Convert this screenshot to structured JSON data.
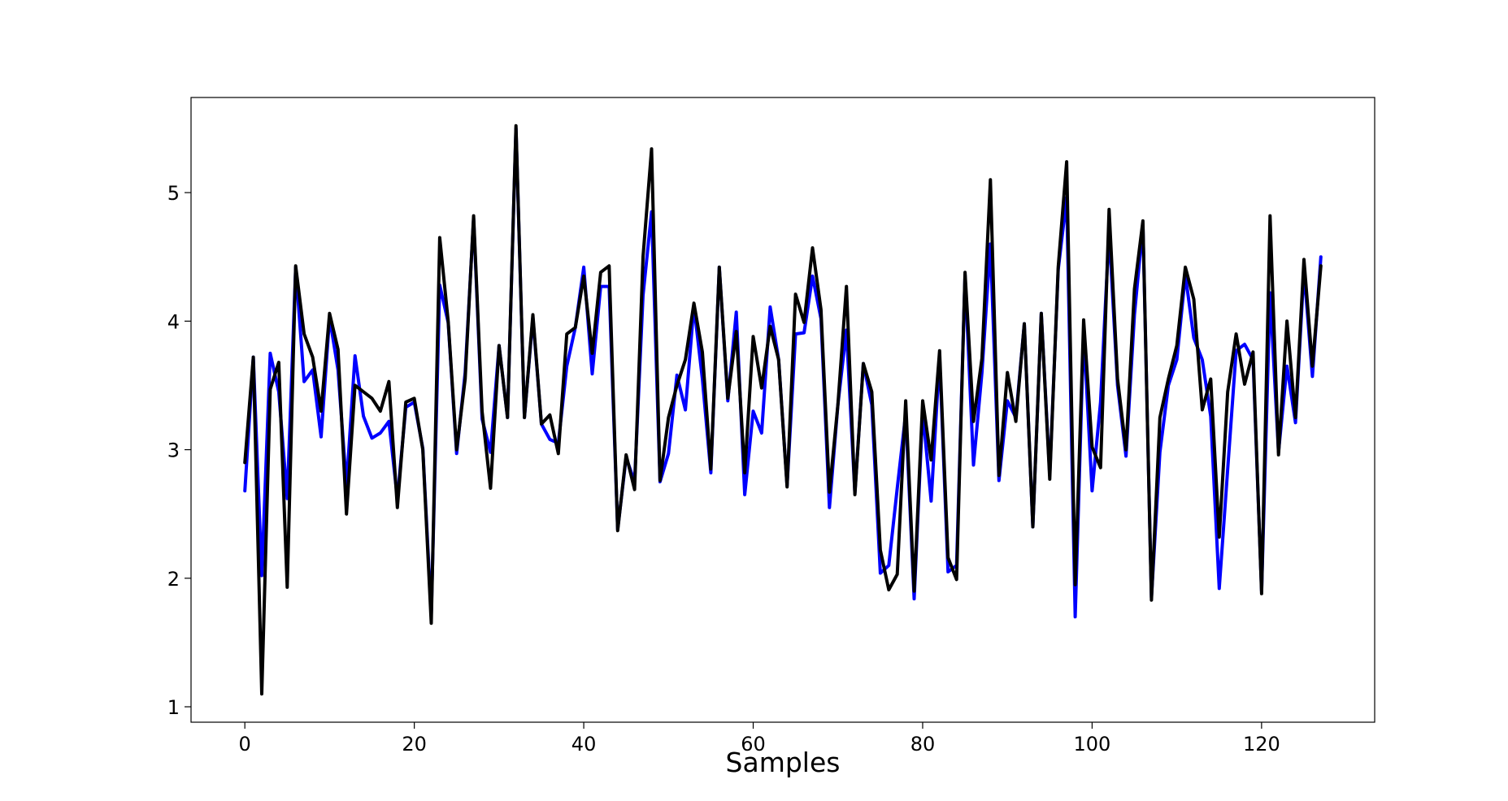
{
  "chart_data": {
    "type": "line",
    "title": "",
    "xlabel": "Samples",
    "ylabel": "",
    "xlim": [
      -6.35,
      133.35
    ],
    "ylim": [
      0.88,
      5.74
    ],
    "x_ticks": [
      0,
      20,
      40,
      60,
      80,
      100,
      120
    ],
    "y_ticks": [
      1,
      2,
      3,
      4,
      5
    ],
    "grid": false,
    "legend": "none",
    "x": [
      0,
      1,
      2,
      3,
      4,
      5,
      6,
      7,
      8,
      9,
      10,
      11,
      12,
      13,
      14,
      15,
      16,
      17,
      18,
      19,
      20,
      21,
      22,
      23,
      24,
      25,
      26,
      27,
      28,
      29,
      30,
      31,
      32,
      33,
      34,
      35,
      36,
      37,
      38,
      39,
      40,
      41,
      42,
      43,
      44,
      45,
      46,
      47,
      48,
      49,
      50,
      51,
      52,
      53,
      54,
      55,
      56,
      57,
      58,
      59,
      60,
      61,
      62,
      63,
      64,
      65,
      66,
      67,
      68,
      69,
      70,
      71,
      72,
      73,
      74,
      75,
      76,
      77,
      78,
      79,
      80,
      81,
      82,
      83,
      84,
      85,
      86,
      87,
      88,
      89,
      90,
      91,
      92,
      93,
      94,
      95,
      96,
      97,
      98,
      99,
      100,
      101,
      102,
      103,
      104,
      105,
      106,
      107,
      108,
      109,
      110,
      111,
      112,
      113,
      114,
      115,
      116,
      117,
      118,
      119,
      120,
      121,
      122,
      123,
      124,
      125,
      126,
      127
    ],
    "series": [
      {
        "color": "#0000ff",
        "values": [
          2.68,
          3.72,
          2.02,
          3.75,
          3.45,
          2.62,
          4.42,
          3.53,
          3.62,
          3.1,
          4.03,
          3.62,
          2.72,
          3.73,
          3.26,
          3.09,
          3.13,
          3.22,
          2.62,
          3.33,
          3.37,
          3.01,
          1.72,
          4.28,
          3.99,
          2.97,
          3.6,
          4.8,
          3.24,
          2.98,
          3.81,
          3.25,
          5.5,
          3.25,
          4.03,
          3.2,
          3.08,
          3.05,
          3.65,
          3.95,
          4.42,
          3.59,
          4.27,
          4.27,
          2.38,
          2.94,
          2.75,
          4.2,
          4.85,
          2.75,
          2.97,
          3.58,
          3.31,
          4.12,
          3.55,
          2.82,
          4.42,
          3.38,
          4.07,
          2.65,
          3.3,
          3.13,
          4.11,
          3.7,
          2.72,
          3.9,
          3.91,
          4.35,
          4.02,
          2.55,
          3.35,
          3.93,
          2.66,
          3.67,
          3.35,
          2.04,
          2.1,
          2.7,
          3.28,
          1.84,
          3.3,
          2.6,
          3.72,
          2.05,
          2.1,
          4.36,
          2.88,
          3.6,
          4.6,
          2.76,
          3.38,
          3.25,
          3.98,
          2.4,
          4.06,
          2.8,
          4.4,
          4.96,
          1.7,
          3.92,
          2.68,
          3.37,
          4.7,
          3.5,
          2.95,
          4.05,
          4.75,
          1.85,
          2.98,
          3.5,
          3.7,
          4.36,
          3.87,
          3.7,
          3.26,
          1.92,
          2.85,
          3.77,
          3.82,
          3.7,
          1.9,
          4.22,
          2.98,
          3.65,
          3.21,
          4.4,
          3.57,
          4.5
        ]
      },
      {
        "color": "#000000",
        "values": [
          2.9,
          3.72,
          1.1,
          3.47,
          3.68,
          1.93,
          4.43,
          3.9,
          3.72,
          3.3,
          4.06,
          3.78,
          2.5,
          3.5,
          3.45,
          3.4,
          3.3,
          3.53,
          2.55,
          3.37,
          3.4,
          3.0,
          1.65,
          4.65,
          4.0,
          3.0,
          3.55,
          4.82,
          3.3,
          2.7,
          3.81,
          3.25,
          5.52,
          3.25,
          4.05,
          3.2,
          3.27,
          2.97,
          3.9,
          3.95,
          4.35,
          3.75,
          4.38,
          4.43,
          2.37,
          2.96,
          2.69,
          4.5,
          5.34,
          2.76,
          3.25,
          3.5,
          3.7,
          4.14,
          3.76,
          2.85,
          4.42,
          3.4,
          3.92,
          2.82,
          3.88,
          3.48,
          3.96,
          3.7,
          2.71,
          4.21,
          3.99,
          4.57,
          4.09,
          2.67,
          3.35,
          4.27,
          2.65,
          3.67,
          3.45,
          2.22,
          1.91,
          2.03,
          3.38,
          1.9,
          3.38,
          2.92,
          3.77,
          2.16,
          1.99,
          4.38,
          3.22,
          3.71,
          5.1,
          2.8,
          3.6,
          3.22,
          3.98,
          2.4,
          4.06,
          2.77,
          4.42,
          5.24,
          1.95,
          4.01,
          3.02,
          2.86,
          4.87,
          3.55,
          3.0,
          4.25,
          4.78,
          1.83,
          3.25,
          3.55,
          3.81,
          4.42,
          4.17,
          3.31,
          3.55,
          2.32,
          3.45,
          3.9,
          3.51,
          3.76,
          1.88,
          4.82,
          2.96,
          4.0,
          3.25,
          4.48,
          3.65,
          4.43
        ]
      }
    ]
  }
}
